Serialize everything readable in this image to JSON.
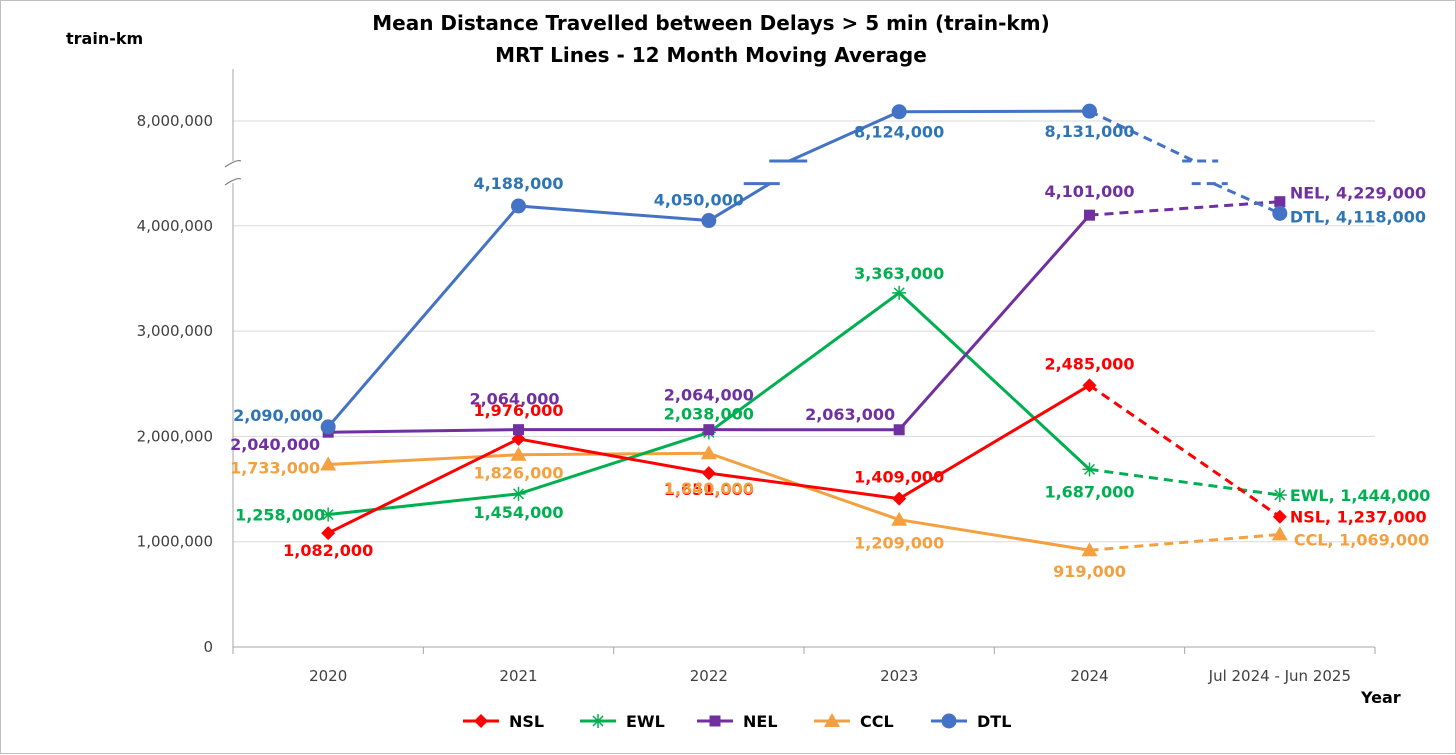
{
  "chart_data": {
    "type": "line",
    "title": "Mean Distance Travelled between Delays > 5 min (train-km)",
    "subtitle": "MRT Lines - 12 Month Moving Average",
    "ylabel": "train-km",
    "xlabel": "Year",
    "categories": [
      "2020",
      "2021",
      "2022",
      "2023",
      "2024",
      "Jul 2024 - Jun 2025"
    ],
    "ylim": [
      0,
      4500000
    ],
    "ylim_upper_segment": [
      7500000,
      8300000
    ],
    "axis_break": true,
    "y_ticks": [
      {
        "value": 0,
        "label": "0"
      },
      {
        "value": 1000000,
        "label": "1,000,000"
      },
      {
        "value": 2000000,
        "label": "2,000,000"
      },
      {
        "value": 3000000,
        "label": "3,000,000"
      },
      {
        "value": 4000000,
        "label": "4,000,000"
      },
      {
        "value": 8000000,
        "label": "8,000,000"
      }
    ],
    "legend_position": "bottom",
    "series": [
      {
        "name": "NSL",
        "color": "#FF0000",
        "marker": "diamond",
        "values": [
          1082000,
          1976000,
          1651000,
          1409000,
          2485000,
          1237000
        ],
        "labels": [
          "1,082,000",
          "1,976,000",
          "1,651,000",
          "1,409,000",
          "2,485,000",
          "NSL, 1,237,000"
        ]
      },
      {
        "name": "EWL",
        "color": "#00B050",
        "marker": "star",
        "values": [
          1258000,
          1454000,
          2038000,
          3363000,
          1687000,
          1444000
        ],
        "labels": [
          "1,258,000",
          "1,454,000",
          "2,038,000",
          "3,363,000",
          "1,687,000",
          "EWL, 1,444,000"
        ]
      },
      {
        "name": "NEL",
        "color": "#7030A0",
        "marker": "square",
        "values": [
          2040000,
          2064000,
          2064000,
          2063000,
          4101000,
          4229000
        ],
        "labels": [
          "2,040,000",
          "2,064,000",
          "2,064,000",
          "2,063,000",
          "4,101,000",
          "NEL, 4,229,000"
        ]
      },
      {
        "name": "CCL",
        "color": "#F4A040",
        "marker": "triangle",
        "values": [
          1733000,
          1826000,
          1840000,
          1209000,
          919000,
          1069000
        ],
        "labels": [
          "1,733,000",
          "1,826,000",
          "1,840,000",
          "1,209,000",
          "919,000",
          "CCL, 1,069,000"
        ]
      },
      {
        "name": "DTL",
        "color": "#4472C4",
        "marker": "circle",
        "values": [
          2090000,
          4188000,
          4050000,
          8124000,
          8131000,
          4118000
        ],
        "labels": [
          "2,090,000",
          "4,188,000",
          "4,050,000",
          "8,124,000",
          "8,131,000",
          "DTL, 4,118,000"
        ]
      }
    ]
  }
}
